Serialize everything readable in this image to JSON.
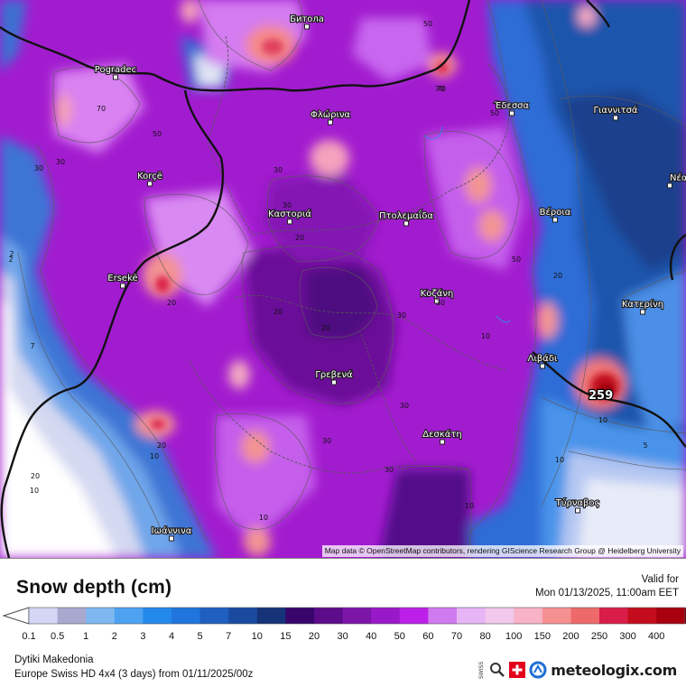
{
  "map": {
    "cities": [
      {
        "name": "Битола"
      },
      {
        "name": "Pogradec"
      },
      {
        "name": "Φλώρινα"
      },
      {
        "name": "Έδεσσα"
      },
      {
        "name": "Γιαννιτσά"
      },
      {
        "name": "Νέα Μ"
      },
      {
        "name": "Korçë"
      },
      {
        "name": "Καστοριά"
      },
      {
        "name": "Πτολεμαΐδα"
      },
      {
        "name": "Βέροια"
      },
      {
        "name": "Ersekë"
      },
      {
        "name": "Κοζάνη"
      },
      {
        "name": "Κατερίνη"
      },
      {
        "name": "Λιβάδι"
      },
      {
        "name": "Γρεβενά"
      },
      {
        "name": "Δεσκάτη"
      },
      {
        "name": "Τύρναβος"
      },
      {
        "name": "Ιωάννινα"
      }
    ],
    "contour_labels": [
      "50",
      "70",
      "50",
      "30",
      "30",
      "30",
      "20",
      "20",
      "20",
      "30",
      "50",
      "20",
      "30",
      "10",
      "30",
      "30",
      "10",
      "20",
      "10",
      "20",
      "10",
      "2",
      "2",
      "5",
      "7",
      "10",
      "30",
      "20",
      "10",
      "10",
      "30",
      "50",
      "70",
      "70"
    ],
    "max_value": "259",
    "attribution": "Map data © OpenStreetMap contributors, rendering GIScience Research Group @ Heidelberg University"
  },
  "legend": {
    "title": "Snow depth (cm)",
    "valid_for_label": "Valid for",
    "valid_time": "Mon 01/13/2025, 11:00am EET",
    "region": "Dytiki Makedonia",
    "model_info": "Europe Swiss HD 4x4 (3 days) from 01/11/2025/00z",
    "brand": "meteologix.com",
    "ticks": [
      "0.1",
      "0.5",
      "1",
      "2",
      "3",
      "4",
      "5",
      "7",
      "10",
      "15",
      "20",
      "30",
      "40",
      "50",
      "60",
      "70",
      "80",
      "100",
      "150",
      "200",
      "250",
      "300",
      "400"
    ],
    "colors": [
      "#d6d6f6",
      "#a9a9d0",
      "#7fb8f0",
      "#4da2f2",
      "#2288ec",
      "#1f74de",
      "#1e5fbf",
      "#1a4aa0",
      "#16337a",
      "#37056b",
      "#5c0c8a",
      "#7c15a8",
      "#9919c8",
      "#bc20e8",
      "#d17aef",
      "#e7b5f5",
      "#f2c8ec",
      "#f8b3c6",
      "#f69191",
      "#ee6a6a",
      "#d91c48",
      "#c40c1c",
      "#a8000e",
      "#900010",
      "#6e0010"
    ],
    "icons": [
      "swiss-hd-logo",
      "magnifier-icon",
      "swiss-flag-icon",
      "meteologix-logo"
    ]
  }
}
